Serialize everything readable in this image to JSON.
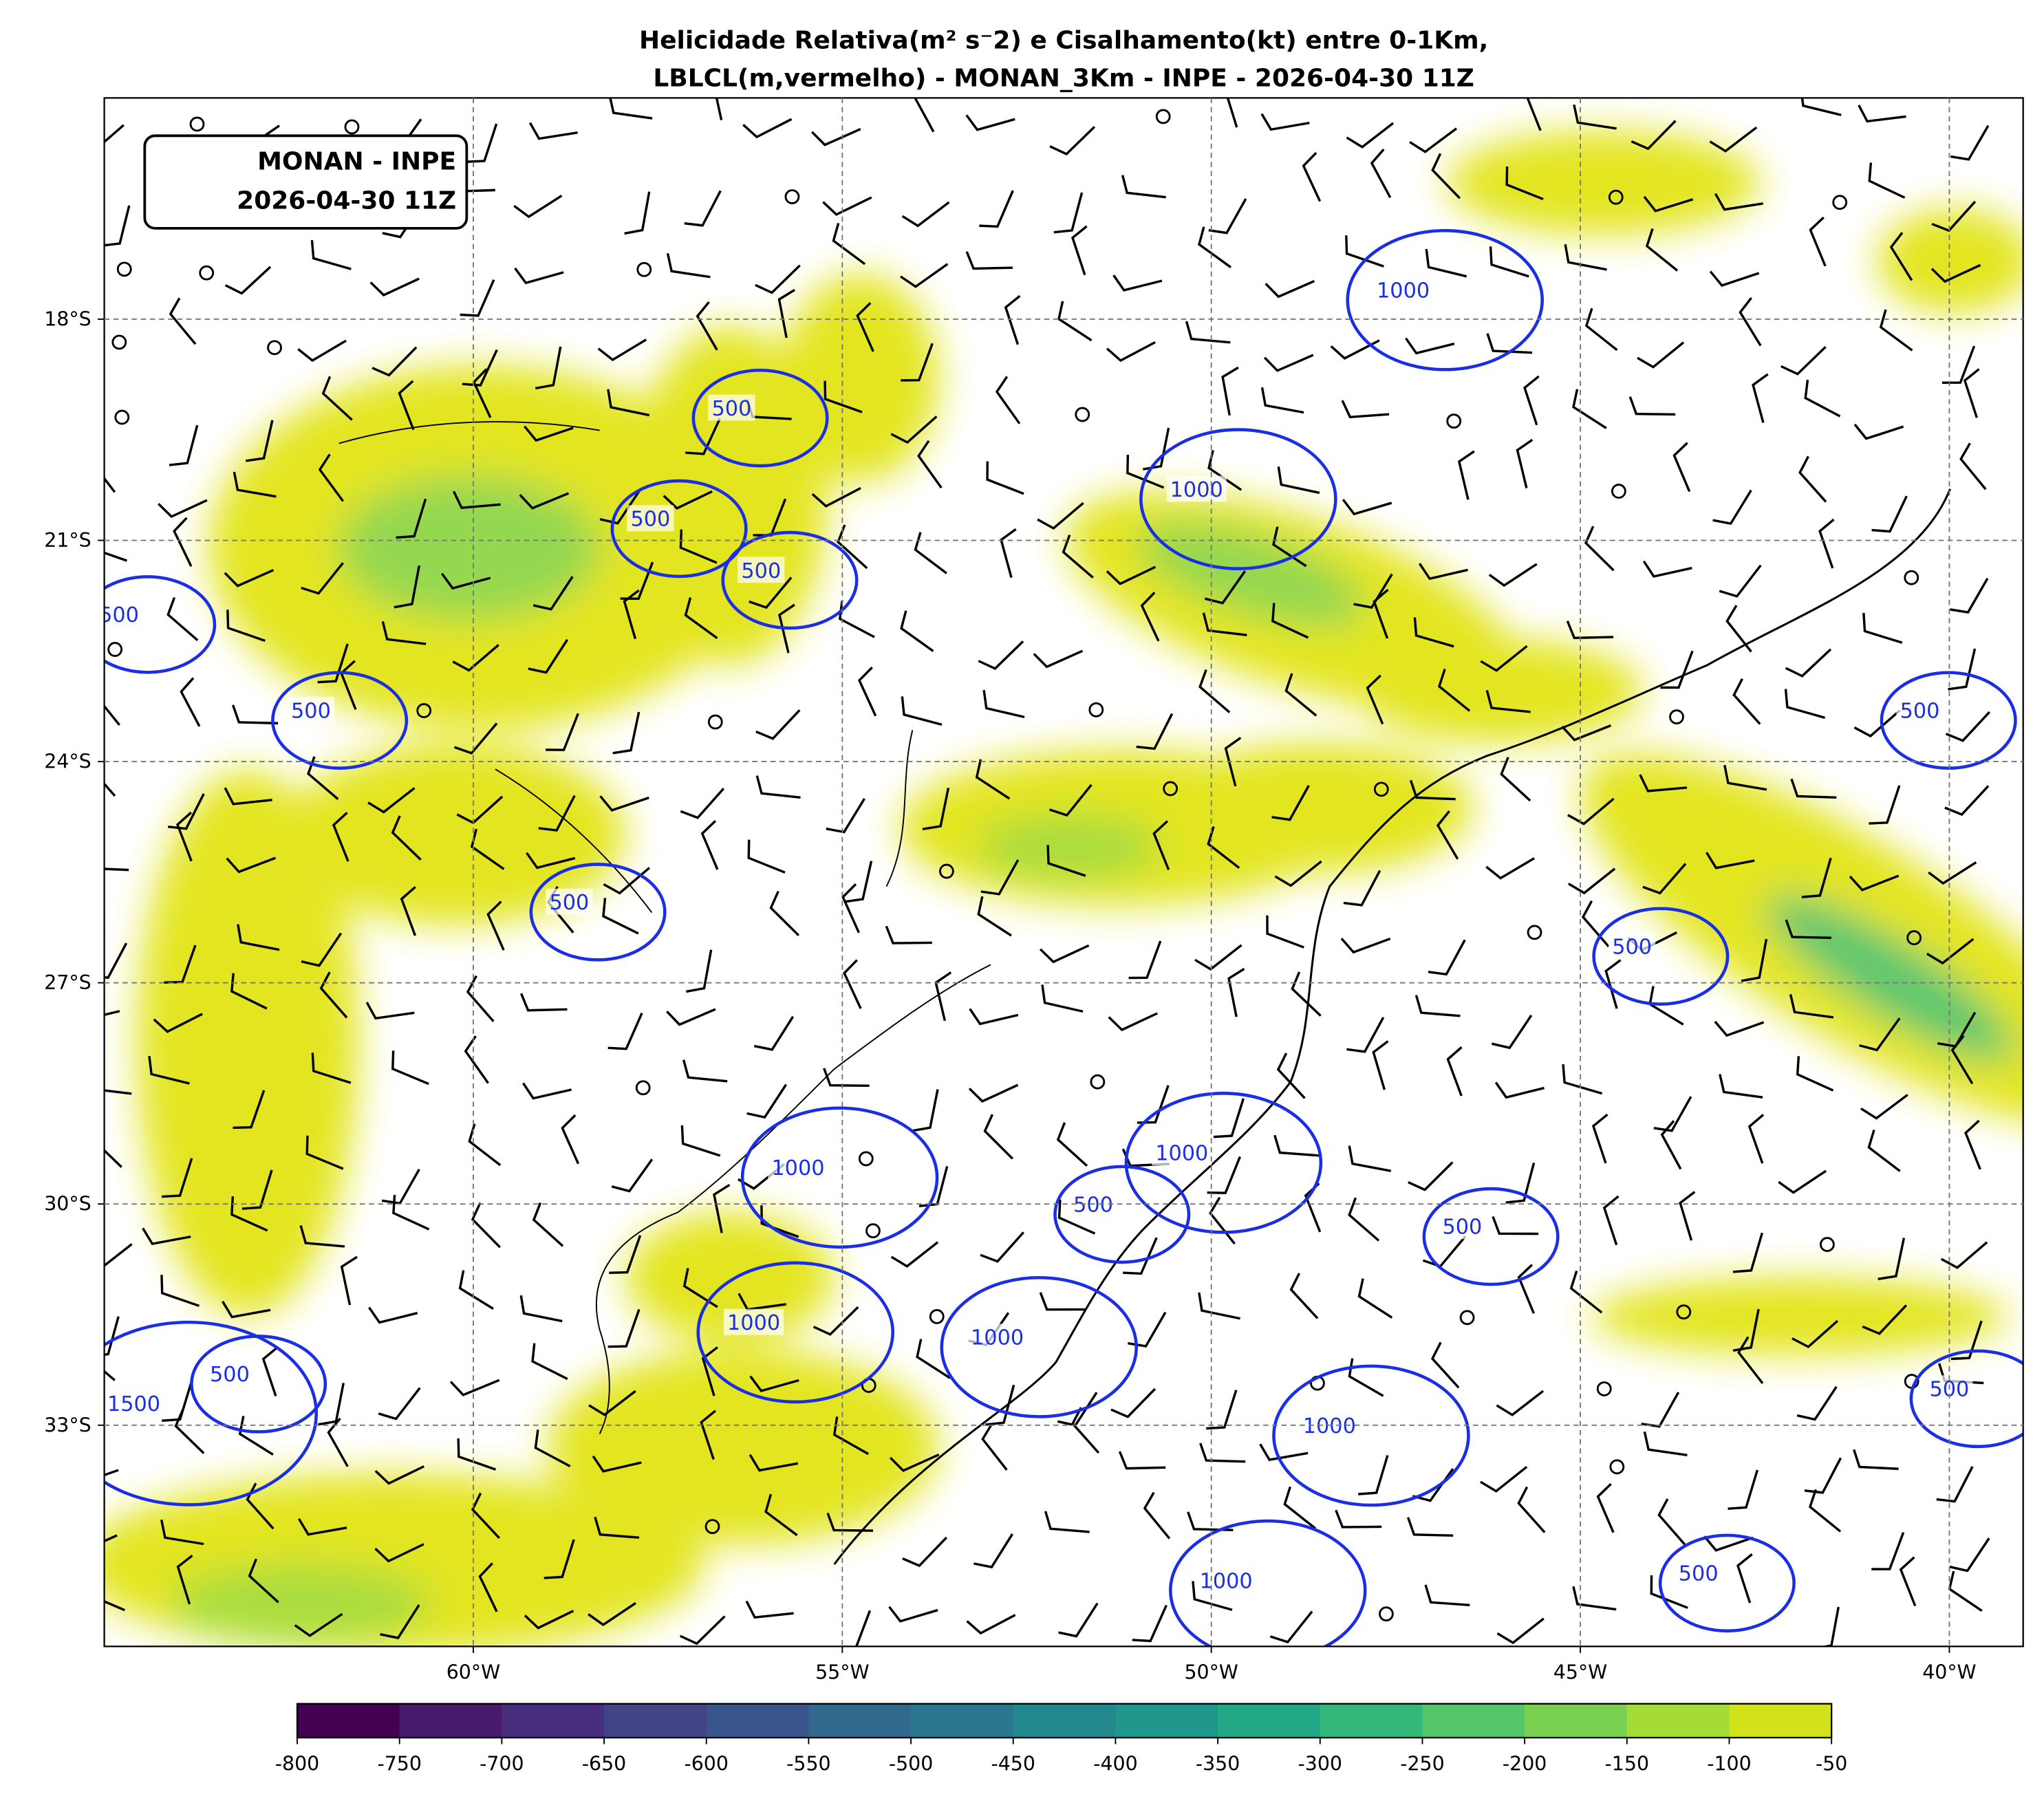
{
  "map": {
    "title": "Helicidade Relativa(m² s⁻2) e Cisalhamento(kt) entre 0-1Km,",
    "subtitle": "LBLCL(m,vermelho) - MONAN_3Km - INPE - 2026-04-30 11Z",
    "badge": [
      "MONAN - INPE",
      "2026-04-30 11Z"
    ],
    "xlim": [
      -65,
      -39
    ],
    "ylim": [
      -36,
      -15
    ],
    "xticks": [
      {
        "value": -60,
        "label": "60°W"
      },
      {
        "value": -55,
        "label": "55°W"
      },
      {
        "value": -50,
        "label": "50°W"
      },
      {
        "value": -45,
        "label": "45°W"
      },
      {
        "value": -40,
        "label": "40°W"
      }
    ],
    "yticks": [
      {
        "value": -18,
        "label": "18°S"
      },
      {
        "value": -21,
        "label": "21°S"
      },
      {
        "value": -24,
        "label": "24°S"
      },
      {
        "value": -27,
        "label": "27°S"
      },
      {
        "value": -30,
        "label": "30°S"
      },
      {
        "value": -33,
        "label": "33°S"
      }
    ],
    "grid": true,
    "contour_color": "#1a2ee6",
    "contour_labels": [
      {
        "lon": -56.5,
        "lat": -19.2,
        "value": 500
      },
      {
        "lon": -57.6,
        "lat": -20.7,
        "value": 500
      },
      {
        "lon": -56.1,
        "lat": -21.4,
        "value": 500
      },
      {
        "lon": -62.2,
        "lat": -23.3,
        "value": 500
      },
      {
        "lon": -64.8,
        "lat": -22.0,
        "value": 500
      },
      {
        "lon": -47.4,
        "lat": -17.6,
        "value": 1000
      },
      {
        "lon": -50.2,
        "lat": -20.3,
        "value": 1000
      },
      {
        "lon": -58.7,
        "lat": -25.9,
        "value": 500
      },
      {
        "lon": -44.3,
        "lat": -26.5,
        "value": 500
      },
      {
        "lon": -40.4,
        "lat": -23.3,
        "value": 500
      },
      {
        "lon": -55.6,
        "lat": -29.5,
        "value": 1000
      },
      {
        "lon": -50.4,
        "lat": -29.3,
        "value": 1000
      },
      {
        "lon": -51.6,
        "lat": -30.0,
        "value": 500
      },
      {
        "lon": -46.6,
        "lat": -30.3,
        "value": 500
      },
      {
        "lon": -56.2,
        "lat": -31.6,
        "value": 1000
      },
      {
        "lon": -52.9,
        "lat": -31.8,
        "value": 1000
      },
      {
        "lon": -63.3,
        "lat": -32.3,
        "value": 500
      },
      {
        "lon": -64.6,
        "lat": -32.7,
        "value": 1500
      },
      {
        "lon": -40.0,
        "lat": -32.5,
        "value": 500
      },
      {
        "lon": -48.4,
        "lat": -33.0,
        "value": 1000
      },
      {
        "lon": -49.8,
        "lat": -35.1,
        "value": 1000
      },
      {
        "lon": -43.4,
        "lat": -35.0,
        "value": 500
      }
    ],
    "colorbar": {
      "lim": [
        -800,
        -50
      ],
      "ticks": [
        -800,
        -750,
        -700,
        -650,
        -600,
        -550,
        -500,
        -450,
        -400,
        -350,
        -300,
        -250,
        -200,
        -150,
        -100,
        -50
      ],
      "colors": [
        "#440154",
        "#481a6c",
        "#472f7d",
        "#414487",
        "#39568c",
        "#31688e",
        "#2a788e",
        "#23888e",
        "#1f988b",
        "#22a884",
        "#35b779",
        "#54c568",
        "#7ad151",
        "#a5db36",
        "#d2e21b"
      ]
    }
  }
}
